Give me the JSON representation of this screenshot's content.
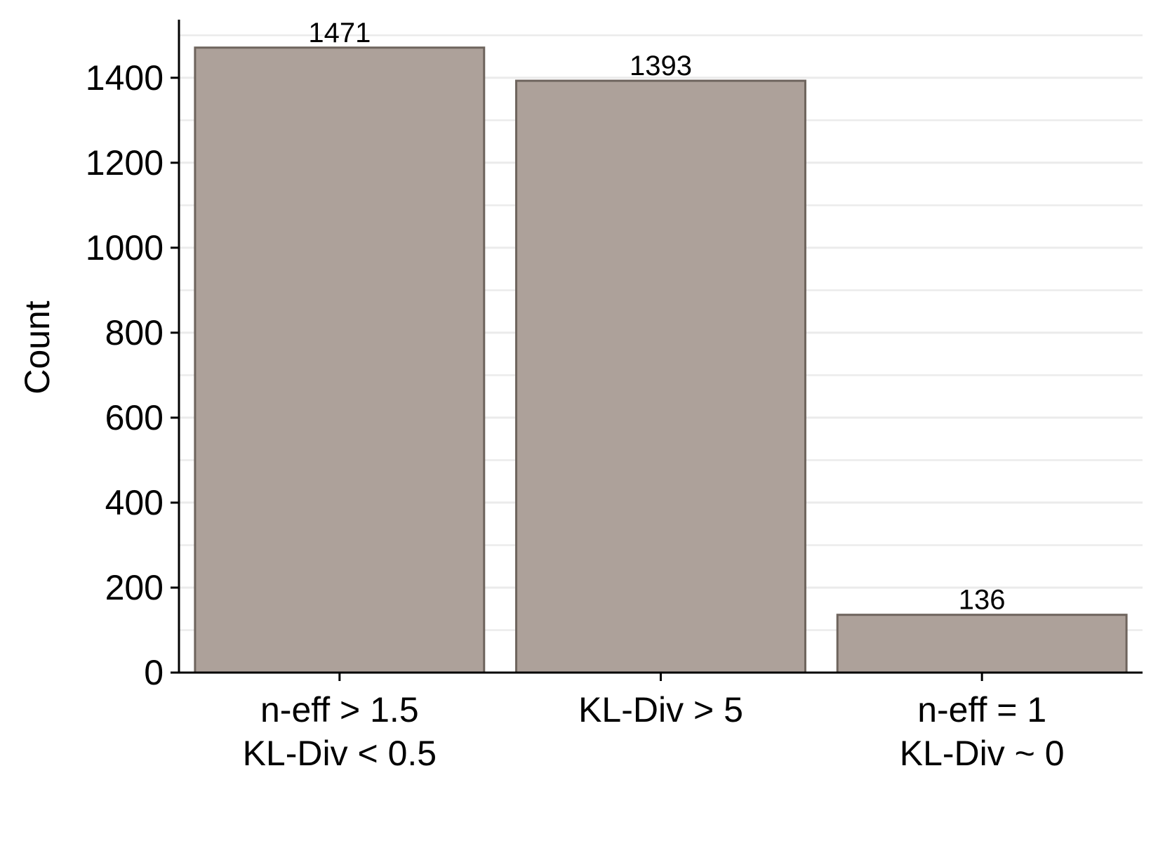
{
  "chart_data": {
    "type": "bar",
    "categories": [
      [
        "n-eff > 1.5",
        "KL-Div < 0.5"
      ],
      [
        "KL-Div > 5"
      ],
      [
        "n-eff = 1",
        "KL-Div ~ 0"
      ]
    ],
    "values": [
      1471,
      1393,
      136
    ],
    "data_labels": [
      "1471",
      "1393",
      "136"
    ],
    "title": "",
    "xlabel": "",
    "ylabel": "Count",
    "ylim": [
      0,
      1550
    ],
    "yticks": [
      0,
      200,
      400,
      600,
      800,
      1000,
      1200,
      1400
    ],
    "ytick_labels": [
      "0",
      "200",
      "400",
      "600",
      "800",
      "1000",
      "1200",
      "1400"
    ],
    "grid": "horizontal major and minor, light gray",
    "legend": "none",
    "colors": {
      "bar_fill": "#ada19a",
      "bar_edge": "#6e645d",
      "grid": "#ebebeb",
      "axis": "#000000"
    }
  }
}
